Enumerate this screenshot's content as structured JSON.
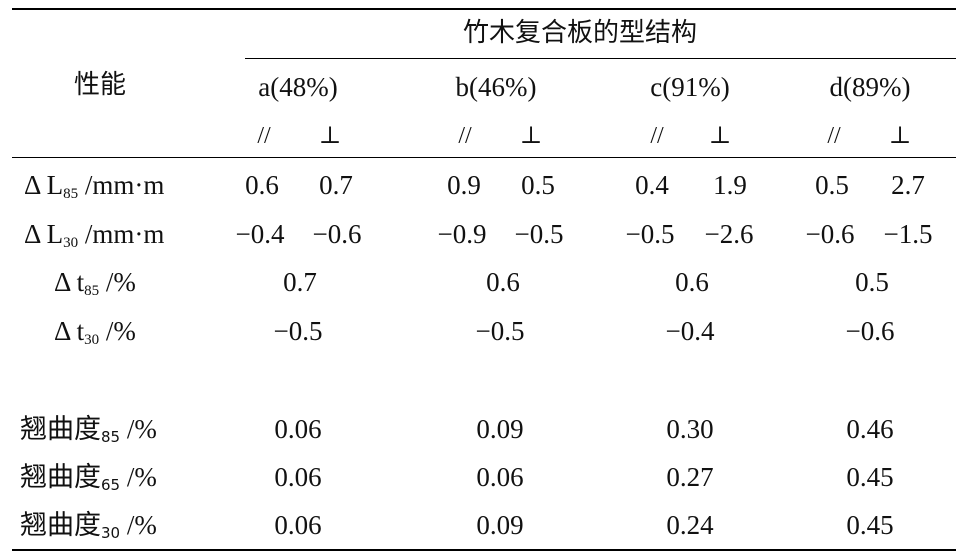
{
  "table": {
    "group_header": "竹木复合板的型结构",
    "row_header_label": "性能",
    "columns": [
      {
        "label": "a(48%)",
        "para": "//",
        "perp": "⊥"
      },
      {
        "label": "b(46%)",
        "para": "//",
        "perp": "⊥"
      },
      {
        "label": "c(91%)",
        "para": "//",
        "perp": "⊥"
      },
      {
        "label": "d(89%)",
        "para": "//",
        "perp": "⊥"
      }
    ],
    "rows": [
      {
        "prefix": "Δ L",
        "sub": "85",
        "unit": " /mm·m",
        "values": [
          "0.6",
          "0.7",
          "0.9",
          "0.5",
          "0.4",
          "1.9",
          "0.5",
          "2.7"
        ]
      },
      {
        "prefix": "Δ L",
        "sub": "30",
        "unit": " /mm·m",
        "values": [
          "−0.4",
          "−0.6",
          "−0.9",
          "−0.5",
          "−0.5",
          "−2.6",
          "−0.6",
          "−1.5"
        ]
      },
      {
        "prefix": "Δ t",
        "sub": "85",
        "unit": " /%",
        "values": [
          "0.7",
          "0.6",
          "0.6",
          "0.5"
        ]
      },
      {
        "prefix": "Δ t",
        "sub": "30",
        "unit": " /%",
        "values": [
          "−0.5",
          "−0.5",
          "−0.4",
          "−0.6"
        ]
      },
      {
        "prefix": "翘曲度",
        "sub": "85",
        "unit": " /%",
        "values": [
          "0.06",
          "0.09",
          "0.30",
          "0.46"
        ]
      },
      {
        "prefix": "翘曲度",
        "sub": "65",
        "unit": " /%",
        "values": [
          "0.06",
          "0.06",
          "0.27",
          "0.45"
        ]
      },
      {
        "prefix": "翘曲度",
        "sub": "30",
        "unit": " /%",
        "values": [
          "0.06",
          "0.09",
          "0.24",
          "0.45"
        ]
      }
    ]
  }
}
